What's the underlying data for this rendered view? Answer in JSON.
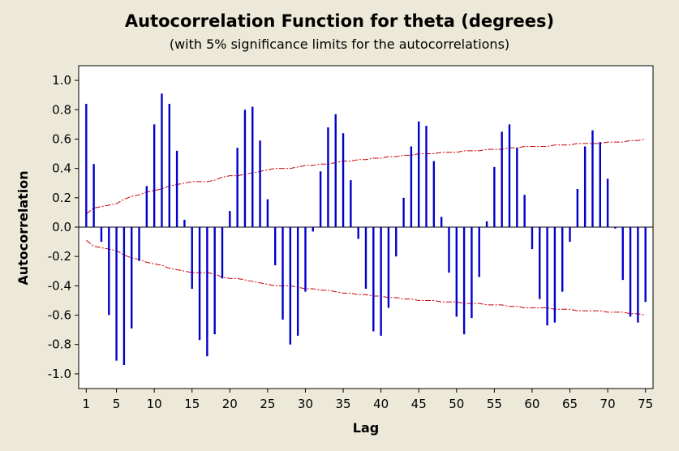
{
  "chart_data": {
    "type": "bar",
    "title": "Autocorrelation Function for theta (degrees)",
    "subtitle": "(with 5% significance limits for the autocorrelations)",
    "xlabel": "Lag",
    "ylabel": "Autocorrelation",
    "xlim": [
      0,
      76
    ],
    "ylim": [
      -1.1,
      1.1
    ],
    "xticks": [
      1,
      5,
      10,
      15,
      20,
      25,
      30,
      35,
      40,
      45,
      50,
      55,
      60,
      65,
      70,
      75
    ],
    "yticks": [
      -1.0,
      -0.8,
      -0.6,
      -0.4,
      -0.2,
      0.0,
      0.2,
      0.4,
      0.6,
      0.8,
      1.0
    ],
    "ytick_labels": [
      "-1.0",
      "-0.8",
      "-0.6",
      "-0.4",
      "-0.2",
      "0.0",
      "0.2",
      "0.4",
      "0.6",
      "0.8",
      "1.0"
    ],
    "lags": [
      1,
      2,
      3,
      4,
      5,
      6,
      7,
      8,
      9,
      10,
      11,
      12,
      13,
      14,
      15,
      16,
      17,
      18,
      19,
      20,
      21,
      22,
      23,
      24,
      25,
      26,
      27,
      28,
      29,
      30,
      31,
      32,
      33,
      34,
      35,
      36,
      37,
      38,
      39,
      40,
      41,
      42,
      43,
      44,
      45,
      46,
      47,
      48,
      49,
      50,
      51,
      52,
      53,
      54,
      55,
      56,
      57,
      58,
      59,
      60,
      61,
      62,
      63,
      64,
      65,
      66,
      67,
      68,
      69,
      70,
      71,
      72,
      73,
      74,
      75
    ],
    "values": [
      0.84,
      0.43,
      -0.1,
      -0.6,
      -0.91,
      -0.94,
      -0.69,
      -0.23,
      0.28,
      0.7,
      0.91,
      0.84,
      0.52,
      0.05,
      -0.42,
      -0.77,
      -0.88,
      -0.73,
      -0.35,
      0.11,
      0.54,
      0.8,
      0.82,
      0.59,
      0.19,
      -0.26,
      -0.63,
      -0.8,
      -0.74,
      -0.44,
      -0.03,
      0.38,
      0.68,
      0.77,
      0.64,
      0.32,
      -0.08,
      -0.42,
      -0.71,
      -0.74,
      -0.55,
      -0.2,
      0.2,
      0.55,
      0.72,
      0.69,
      0.45,
      0.07,
      -0.31,
      -0.61,
      -0.73,
      -0.62,
      -0.34,
      0.04,
      0.41,
      0.65,
      0.7,
      0.54,
      0.22,
      -0.15,
      -0.49,
      -0.67,
      -0.65,
      -0.44,
      -0.1,
      0.26,
      0.55,
      0.66,
      0.58,
      0.33,
      -0.01,
      -0.36,
      -0.61,
      -0.65,
      -0.51
    ],
    "significance_limits": [
      0.09,
      0.13,
      0.14,
      0.15,
      0.16,
      0.19,
      0.21,
      0.22,
      0.24,
      0.25,
      0.26,
      0.28,
      0.29,
      0.3,
      0.31,
      0.31,
      0.31,
      0.32,
      0.34,
      0.35,
      0.35,
      0.36,
      0.37,
      0.38,
      0.39,
      0.4,
      0.4,
      0.4,
      0.41,
      0.42,
      0.42,
      0.43,
      0.43,
      0.44,
      0.45,
      0.45,
      0.46,
      0.46,
      0.47,
      0.47,
      0.48,
      0.48,
      0.49,
      0.49,
      0.5,
      0.5,
      0.5,
      0.51,
      0.51,
      0.51,
      0.52,
      0.52,
      0.52,
      0.53,
      0.53,
      0.53,
      0.54,
      0.54,
      0.55,
      0.55,
      0.55,
      0.55,
      0.56,
      0.56,
      0.56,
      0.57,
      0.57,
      0.57,
      0.57,
      0.58,
      0.58,
      0.58,
      0.59,
      0.59,
      0.6
    ],
    "colors": {
      "bars": "#0000CC",
      "limits": "#CC0000",
      "background": "#ECE9D8",
      "plot_area": "#FFFFFF"
    }
  }
}
